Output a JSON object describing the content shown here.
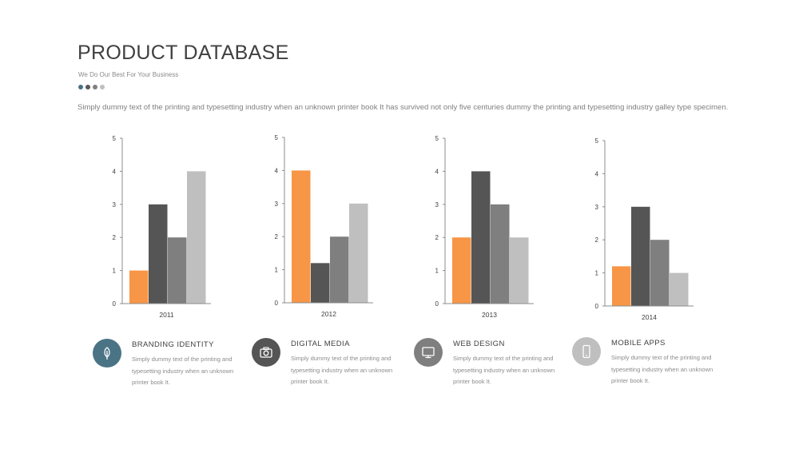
{
  "header": {
    "title": "PRODUCT DATABASE",
    "subtitle": "We Do Our Best For Your Business",
    "dot_colors": [
      "#4a7386",
      "#595959",
      "#7f7f7f",
      "#bfbfbf"
    ],
    "intro": "Simply dummy text of the printing and typesetting industry when an unknown printer book It has survived not only five centuries dummy  the printing and typesetting industry galley type specimen."
  },
  "colors": {
    "orange": "#f79646",
    "dark_gray": "#555555",
    "mid_gray": "#7f7f7f",
    "light_gray": "#bfbfbf",
    "teal": "#4a7386"
  },
  "chart_data": [
    {
      "type": "bar",
      "categories": [
        "2011"
      ],
      "series": [
        {
          "values": [
            1
          ]
        },
        {
          "values": [
            3
          ]
        },
        {
          "values": [
            2
          ]
        },
        {
          "values": [
            4
          ]
        }
      ],
      "ylim": [
        0,
        5
      ],
      "yticks": [
        "0",
        "1",
        "2",
        "3",
        "4",
        "5"
      ],
      "grid": false
    },
    {
      "type": "bar",
      "categories": [
        "2012"
      ],
      "series": [
        {
          "values": [
            4
          ]
        },
        {
          "values": [
            1.2
          ]
        },
        {
          "values": [
            2
          ]
        },
        {
          "values": [
            3
          ]
        }
      ],
      "ylim": [
        0,
        5
      ],
      "yticks": [
        "0",
        "1",
        "2",
        "3",
        "4",
        "5"
      ],
      "grid": false
    },
    {
      "type": "bar",
      "categories": [
        "2013"
      ],
      "series": [
        {
          "values": [
            2
          ]
        },
        {
          "values": [
            4
          ]
        },
        {
          "values": [
            3
          ]
        },
        {
          "values": [
            2
          ]
        }
      ],
      "ylim": [
        0,
        5
      ],
      "yticks": [
        "0",
        "1",
        "2",
        "3",
        "4",
        "5"
      ],
      "grid": false
    },
    {
      "type": "bar",
      "categories": [
        "2014"
      ],
      "series": [
        {
          "values": [
            1.2
          ]
        },
        {
          "values": [
            3
          ]
        },
        {
          "values": [
            2
          ]
        },
        {
          "values": [
            1
          ]
        }
      ],
      "ylim": [
        0,
        5
      ],
      "yticks": [
        "0",
        "1",
        "2",
        "3",
        "4",
        "5"
      ],
      "grid": false
    }
  ],
  "features": [
    {
      "title": "BRANDING  IDENTITY",
      "desc": "Simply dummy text of the printing and typesetting  industry when an unknown printer book It.",
      "icon": "leaf-icon",
      "color": "#4a7386"
    },
    {
      "title": "DIGITAL MEDIA",
      "desc": "Simply dummy text of the printing and typesetting  industry when an unknown printer book It.",
      "icon": "camera-icon",
      "color": "#555555"
    },
    {
      "title": "WEB DESIGN",
      "desc": "Simply dummy text of the printing and typesetting  industry when an unknown printer book It.",
      "icon": "monitor-icon",
      "color": "#7f7f7f"
    },
    {
      "title": "MOBILE APPS",
      "desc": "Simply dummy text of the printing and typesetting  industry when an unknown printer book It.",
      "icon": "mobile-icon",
      "color": "#bfbfbf"
    }
  ]
}
